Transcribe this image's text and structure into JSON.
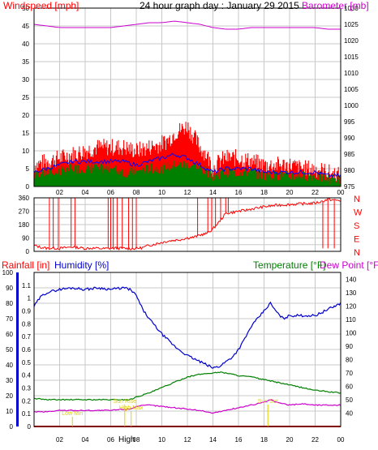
{
  "header": {
    "title": "24 hour graph day : January 29 2015",
    "left_label": "Windspeed [mph]",
    "right_label": "Barometer [mb]"
  },
  "colors": {
    "windspeed": "#ff0000",
    "gust_fill": "#ff0000",
    "avg_fill": "#008000",
    "avg_line": "#0000ff",
    "barometer": "#cc00cc",
    "direction": "#ff0000",
    "humidity": "#0000cc",
    "temperature": "#008000",
    "dewpoint": "#cc00cc",
    "rainfall": "#ff0000",
    "sun": "#e0d000",
    "grid": "#c8c8c8",
    "axis": "#000000",
    "axis_left_bar": "#0000cc"
  },
  "chart_data": [
    {
      "id": "wind",
      "type": "line",
      "title": "24 hour graph day : January 29 2015",
      "ylabel": "Windspeed [mph]",
      "y2label": "Barometer [mb]",
      "x_tick_labels": [
        "02",
        "04",
        "06",
        "08",
        "10",
        "12",
        "14",
        "16",
        "18",
        "20",
        "22",
        "00"
      ],
      "x_ticks_hours": [
        2,
        4,
        6,
        8,
        10,
        12,
        14,
        16,
        18,
        20,
        22,
        24
      ],
      "xlim": [
        0,
        24
      ],
      "ylim": [
        0,
        50
      ],
      "yticks": [
        0,
        5,
        10,
        15,
        20,
        25,
        30,
        35,
        40,
        45,
        50
      ],
      "y2lim": [
        975,
        1030
      ],
      "y2ticks": [
        975,
        980,
        985,
        990,
        995,
        1000,
        1005,
        1010,
        1015,
        1020,
        1025,
        1030
      ],
      "grid": true,
      "series": [
        {
          "name": "Windspeed [mph]",
          "kind": "band",
          "axis": "left",
          "x": [
            0,
            1,
            2,
            3,
            4,
            5,
            6,
            7,
            8,
            9,
            10,
            10.5,
            11,
            11.5,
            12,
            12.5,
            13,
            13.5,
            14,
            14.5,
            15,
            16,
            17,
            18,
            19,
            20,
            21,
            22,
            23,
            24
          ],
          "values": [
            6,
            7,
            8,
            9,
            10,
            11,
            11,
            11,
            10,
            11,
            12,
            13,
            15,
            16,
            17,
            14,
            11,
            9,
            5,
            7,
            8,
            8,
            7,
            6,
            6,
            6,
            5,
            5,
            4,
            3
          ]
        },
        {
          "name": "Average",
          "kind": "band",
          "axis": "left",
          "x": [
            0,
            1,
            2,
            3,
            4,
            5,
            6,
            7,
            8,
            9,
            10,
            11,
            12,
            13,
            14,
            15,
            16,
            17,
            18,
            19,
            20,
            21,
            22,
            23,
            24
          ],
          "values": [
            3,
            4,
            4,
            5,
            5,
            5,
            5,
            4,
            4,
            5,
            5,
            6,
            6,
            5,
            3,
            4,
            4,
            4,
            3,
            3,
            3,
            3,
            3,
            2,
            2
          ]
        },
        {
          "name": "Average line",
          "kind": "line",
          "axis": "left",
          "x": [
            0,
            1,
            2,
            3,
            4,
            5,
            6,
            7,
            8,
            9,
            10,
            11,
            12,
            13,
            14,
            15,
            16,
            17,
            18,
            19,
            20,
            21,
            22,
            23,
            24
          ],
          "values": [
            4,
            5,
            6,
            7,
            7,
            7,
            7,
            7,
            6,
            7,
            8,
            9,
            8,
            6,
            4,
            5,
            5,
            5,
            4,
            4,
            4,
            4,
            4,
            3,
            3
          ]
        },
        {
          "name": "Barometer [mb]",
          "kind": "line",
          "axis": "right",
          "x": [
            0,
            1,
            2,
            3,
            4,
            5,
            6,
            7,
            8,
            9,
            10,
            11,
            12,
            13,
            14,
            15,
            16,
            17,
            18,
            19,
            20,
            21,
            22,
            23,
            24
          ],
          "values": [
            1025,
            1024.5,
            1024,
            1024,
            1024,
            1024,
            1024,
            1024.5,
            1025,
            1025.5,
            1025.5,
            1026,
            1025.5,
            1025,
            1024,
            1023.5,
            1023.5,
            1024,
            1024,
            1024,
            1024,
            1024,
            1024,
            1023.5,
            1023.5
          ]
        }
      ]
    },
    {
      "id": "direction",
      "type": "line",
      "title": "",
      "ylabel": "",
      "x_tick_labels": [],
      "xlim": [
        0,
        24
      ],
      "ylim": [
        0,
        360
      ],
      "yticks": [
        0,
        45,
        90,
        135,
        180,
        225,
        270,
        315,
        360
      ],
      "compass_labels": [
        "N",
        "W",
        "S",
        "E",
        "N"
      ],
      "grid": true,
      "series": [
        {
          "name": "Wind direction",
          "kind": "line",
          "x": [
            0,
            0.5,
            1,
            1.5,
            2,
            2.5,
            3,
            3.5,
            4,
            4.5,
            5,
            5.5,
            6,
            6.5,
            7,
            7.5,
            8,
            8.5,
            9,
            9.5,
            10,
            10.5,
            11,
            11.5,
            12,
            12.5,
            13,
            13.5,
            14,
            14.5,
            15,
            15.5,
            16,
            16.5,
            17,
            17.5,
            18,
            18.5,
            19,
            19.5,
            20,
            20.5,
            21,
            21.5,
            22,
            22.5,
            23,
            23.5,
            24
          ],
          "values": [
            40,
            28,
            20,
            22,
            20,
            25,
            30,
            25,
            20,
            22,
            20,
            18,
            20,
            22,
            20,
            18,
            20,
            25,
            40,
            50,
            60,
            70,
            75,
            80,
            90,
            95,
            110,
            120,
            150,
            200,
            255,
            262,
            270,
            275,
            285,
            292,
            300,
            305,
            310,
            313,
            315,
            318,
            320,
            322,
            325,
            335,
            350,
            345,
            340
          ]
        },
        {
          "name": "Direction spikes",
          "kind": "spikes",
          "x": [
            1.2,
            1.5,
            1.9,
            2.9,
            3.2,
            5.8,
            6.0,
            6.2,
            6.5,
            6.9,
            7.4,
            7.7,
            8.0,
            12.8,
            13.6,
            13.9,
            14.2,
            14.6,
            15.0,
            15.2,
            22.6,
            23.0,
            23.5
          ],
          "values": [
            360,
            360,
            360,
            360,
            360,
            360,
            360,
            360,
            360,
            360,
            360,
            360,
            360,
            360,
            360,
            360,
            360,
            360,
            360,
            360,
            20,
            20,
            20
          ]
        }
      ]
    },
    {
      "id": "temp_hum",
      "type": "line",
      "title": "",
      "legend_left": [
        "Rainfall [in]",
        "Humidity [%]"
      ],
      "legend_right": [
        "Temperature [°F]",
        "Dew Point [°F]"
      ],
      "x_tick_labels": [
        "02",
        "04",
        "06",
        "08",
        "10",
        "12",
        "14",
        "16",
        "18",
        "20",
        "22",
        "00"
      ],
      "x_ticks_hours": [
        2,
        4,
        6,
        8,
        10,
        12,
        14,
        16,
        18,
        20,
        22,
        24
      ],
      "xlim": [
        0,
        24
      ],
      "ylim_humidity": [
        0,
        100
      ],
      "yticks_humidity": [
        0,
        10,
        20,
        30,
        40,
        50,
        60,
        70,
        80,
        90,
        100
      ],
      "ylim_rainfall": [
        0,
        1.2
      ],
      "yticks_rainfall": [
        0,
        0.1,
        0.2,
        0.3,
        0.4,
        0.5,
        0.6,
        0.7,
        0.8,
        0.9,
        1,
        1.1
      ],
      "ylim_temperature": [
        30,
        145
      ],
      "yticks_temperature": [
        40,
        50,
        60,
        70,
        80,
        90,
        100,
        110,
        120,
        130,
        140
      ],
      "grid": true,
      "series": [
        {
          "name": "Humidity [%]",
          "axis": "humidity",
          "x": [
            0,
            0.5,
            1,
            2,
            3,
            4,
            5,
            6,
            7,
            7.5,
            8,
            8.5,
            9,
            10,
            11,
            12,
            13,
            14,
            14.5,
            15,
            15.5,
            16,
            16.5,
            17,
            17.5,
            18,
            18.5,
            19,
            19.5,
            20,
            21,
            22,
            23,
            24
          ],
          "values": [
            78,
            84,
            87,
            89,
            90,
            89,
            90,
            89,
            90,
            89,
            85,
            76,
            70,
            60,
            52,
            46,
            42,
            38,
            39,
            42,
            45,
            50,
            57,
            65,
            70,
            75,
            80,
            74,
            70,
            72,
            72,
            72,
            76,
            80
          ]
        },
        {
          "name": "Temperature [°F]",
          "axis": "temperature",
          "x": [
            0,
            1,
            2,
            3,
            4,
            5,
            6,
            7,
            7.5,
            8,
            9,
            10,
            11,
            12,
            13,
            14,
            14.5,
            15,
            16,
            17,
            18,
            19,
            20,
            21,
            22,
            23,
            24
          ],
          "values": [
            51,
            50,
            50,
            50,
            50,
            50,
            50,
            50,
            50,
            52,
            55,
            59,
            63,
            67,
            69,
            70,
            70.5,
            70,
            68,
            67,
            65,
            63,
            61,
            59,
            57,
            56,
            55
          ]
        },
        {
          "name": "Dew Point [°F]",
          "axis": "temperature",
          "x": [
            0,
            1,
            2,
            3,
            4,
            5,
            6,
            7,
            7.5,
            8,
            9,
            10,
            11,
            12,
            13,
            14,
            15,
            16,
            17,
            18,
            18.5,
            19,
            20,
            21,
            22,
            23,
            24
          ],
          "values": [
            41,
            41,
            42,
            42,
            42,
            42,
            42,
            43,
            43,
            45,
            46,
            45,
            44,
            43,
            42,
            40,
            42,
            44,
            46,
            48,
            50,
            48,
            46,
            47,
            46,
            46,
            46
          ]
        },
        {
          "name": "Rainfall [in]",
          "axis": "rainfall",
          "x": [
            0,
            24
          ],
          "values": [
            0,
            0
          ]
        }
      ],
      "annotations": [
        {
          "text": "Low Min",
          "x": 3.0
        },
        {
          "text": "Sun Rise",
          "x": 7.1
        },
        {
          "text": "High Max",
          "x": 7.6
        },
        {
          "text": "Sun Set",
          "x": 18.3
        }
      ],
      "bottom_label": "High"
    }
  ]
}
